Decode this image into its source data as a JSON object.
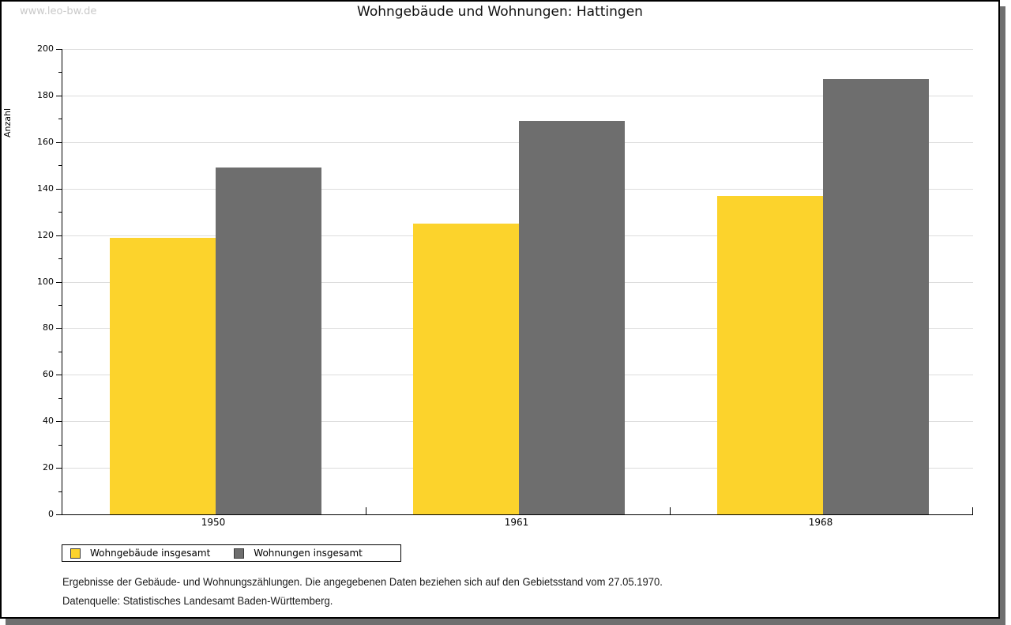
{
  "watermark": "www.leo-bw.de",
  "title": "Wohngebäude und Wohnungen: Hattingen",
  "chart_data": {
    "type": "bar",
    "title": "Wohngebäude und Wohnungen: Hattingen",
    "categories": [
      "1950",
      "1961",
      "1968"
    ],
    "series": [
      {
        "name": "Wohngebäude insgesamt",
        "color": "#fcd32c",
        "values": [
          119,
          125,
          137
        ]
      },
      {
        "name": "Wohnungen insgesamt",
        "color": "#6e6e6e",
        "values": [
          149,
          169,
          187
        ]
      }
    ],
    "xlabel": "",
    "ylabel": "Anzahl",
    "ylim": [
      0,
      200
    ],
    "ytick_major_step": 20,
    "ytick_minor_step": 10,
    "grid": true,
    "legend_position": "bottom-left"
  },
  "footnotes": {
    "line1": "Ergebnisse der Gebäude- und Wohnungszählungen. Die angegebenen Daten beziehen sich auf den Gebietsstand vom 27.05.1970.",
    "line2": "Datenquelle: Statistisches Landesamt Baden-Württemberg."
  },
  "colors": {
    "bar_yellow": "#fcd32c",
    "bar_gray": "#6e6e6e",
    "gridline": "#dcdcdc",
    "axis": "#000000",
    "watermark": "#c9c9c9",
    "frame_shadow": "#6f6f6f"
  }
}
